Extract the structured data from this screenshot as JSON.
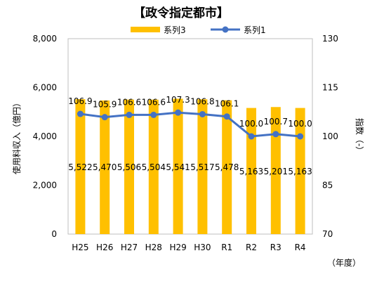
{
  "chart_data": {
    "type": "bar+line",
    "title": "【政令指定都市】",
    "categories": [
      "H25",
      "H26",
      "H27",
      "H28",
      "H29",
      "H30",
      "R1",
      "R2",
      "R3",
      "R4"
    ],
    "series": [
      {
        "name": "系列3",
        "type": "bar",
        "axis": "left",
        "color": "#FFC000",
        "values": [
          5522,
          5470,
          5506,
          5504,
          5541,
          5517,
          5478,
          5163,
          5201,
          5163
        ],
        "labels": [
          "5,522",
          "5,470",
          "5,506",
          "5,504",
          "5,541",
          "5,517",
          "5,478",
          "5,163",
          "5,201",
          "5,163"
        ]
      },
      {
        "name": "系列1",
        "type": "line",
        "axis": "right",
        "color": "#4472C4",
        "values": [
          106.9,
          105.9,
          106.6,
          106.6,
          107.3,
          106.8,
          106.1,
          100.0,
          100.7,
          100.0
        ],
        "labels": [
          "106.9",
          "105.9",
          "106.6",
          "106.6",
          "107.3",
          "106.8",
          "106.1",
          "100.0",
          "100.7",
          "100.0"
        ]
      }
    ],
    "ylabel": "使用料収入（億円）",
    "y2label": "指数（-）",
    "xunit": "（年度）",
    "ylim": [
      0,
      8000
    ],
    "y2lim": [
      70,
      130
    ],
    "yticks": [
      "0",
      "2,000",
      "4,000",
      "6,000",
      "8,000"
    ],
    "y2ticks": [
      "70",
      "85",
      "100",
      "115",
      "130"
    ],
    "grid": false,
    "legend": "top"
  }
}
